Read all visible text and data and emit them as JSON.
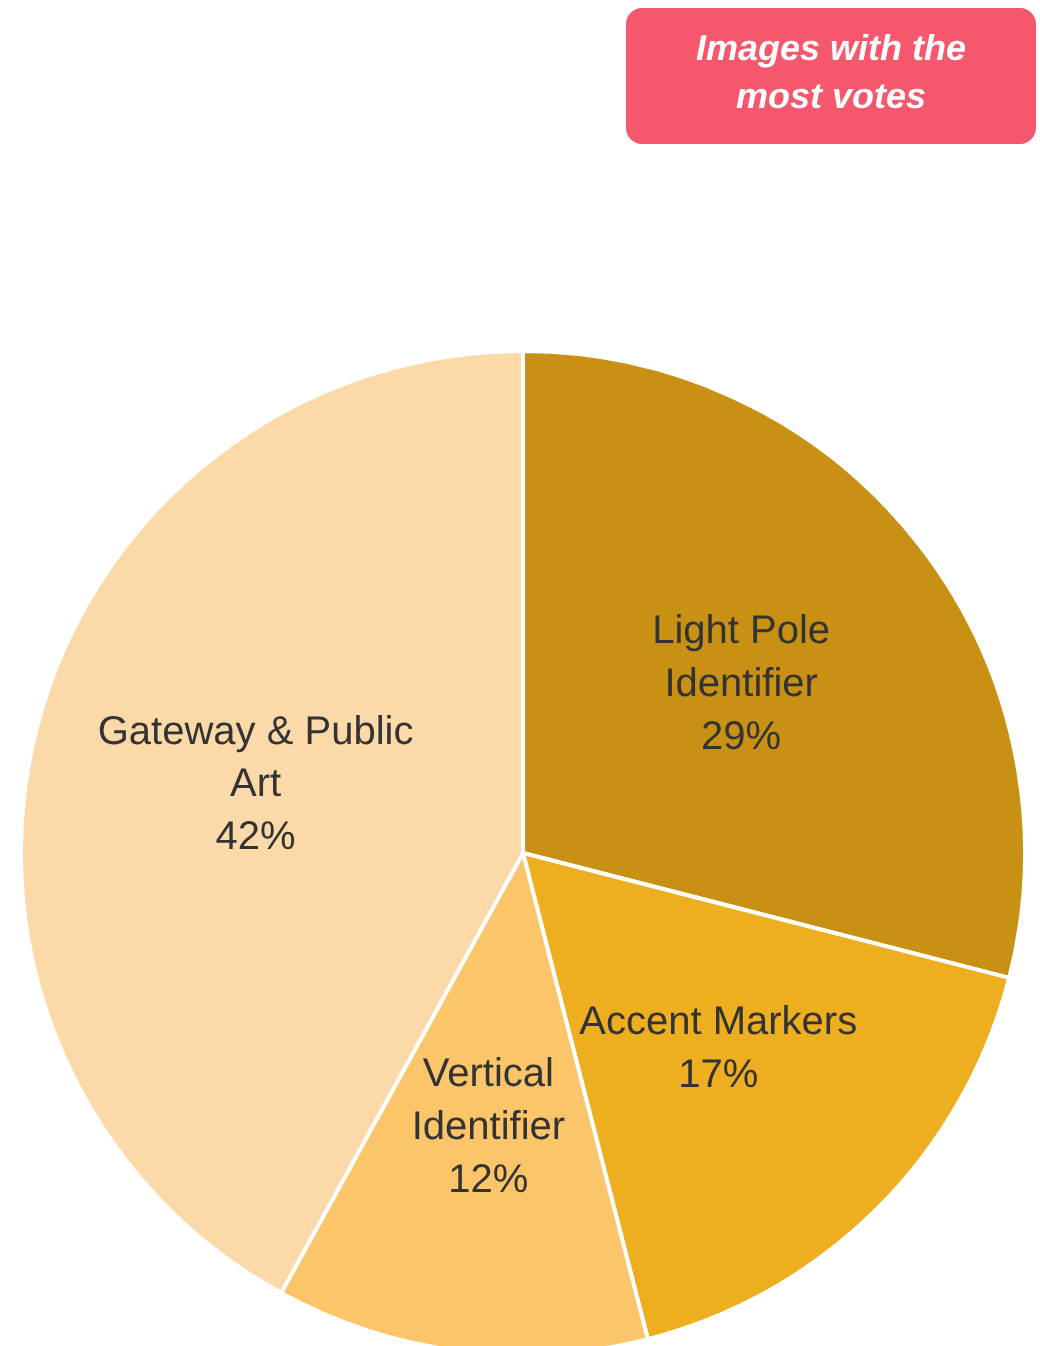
{
  "chart_data": {
    "type": "pie",
    "categories": [
      "Light Pole Identifier",
      "Accent Markers",
      "Vertical Identifier",
      "Gateway & Public Art"
    ],
    "values": [
      29,
      17,
      12,
      42
    ],
    "colors": [
      "#c89114",
      "#edae1f",
      "#fcc56a",
      "#fcd9a8"
    ],
    "value_labels": [
      "29%",
      "17%",
      "12%",
      "42%"
    ],
    "annotations": [
      "Images with the most votes"
    ]
  }
}
